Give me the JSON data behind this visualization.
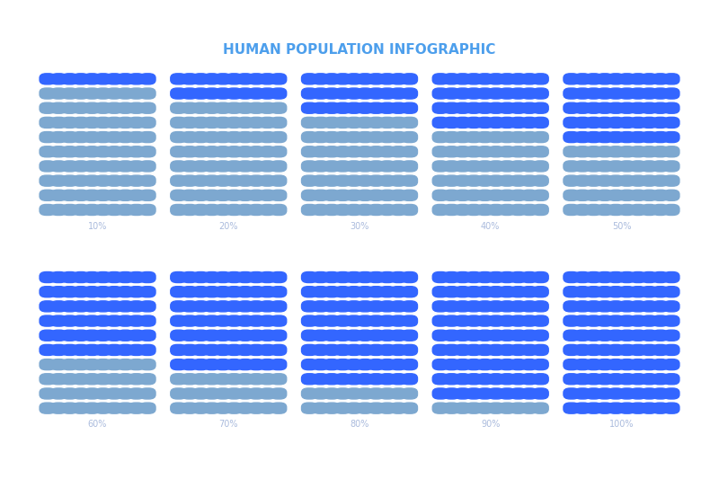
{
  "title": "HUMAN POPULATION INFOGRAPHIC",
  "background_color": "#0d1b4b",
  "title_color": "#4d9fec",
  "label_color": "#aabbdd",
  "percentages": [
    10,
    20,
    30,
    40,
    50,
    60,
    70,
    80,
    90,
    100
  ],
  "grid_cols": 10,
  "grid_rows": 10,
  "highlighted_color": "#3366ff",
  "normal_color": "#7da8d0",
  "figure_bg": "#ffffff",
  "inner_bg": "#0d1b4b",
  "label_fontsize": 7,
  "title_fontsize": 11
}
